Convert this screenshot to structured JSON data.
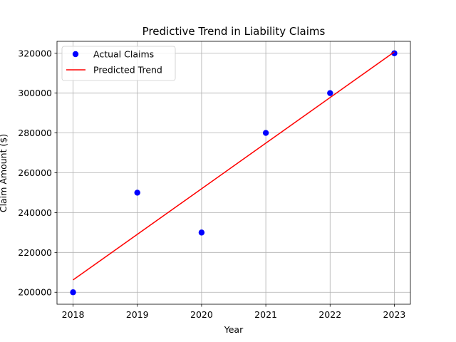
{
  "chart_data": {
    "type": "scatter",
    "title": "Predictive Trend in Liability Claims",
    "xlabel": "Year",
    "ylabel": "Claim Amount ($)",
    "x": [
      2018,
      2019,
      2020,
      2021,
      2022,
      2023
    ],
    "xlim": [
      2017.75,
      2023.25
    ],
    "ylim": [
      194000,
      326000
    ],
    "x_ticks": [
      2018,
      2019,
      2020,
      2021,
      2022,
      2023
    ],
    "y_ticks": [
      200000,
      220000,
      240000,
      260000,
      280000,
      300000,
      320000
    ],
    "grid": true,
    "legend_position": "top-left",
    "series": [
      {
        "name": "Actual Claims",
        "kind": "scatter",
        "color": "#0000ff",
        "x": [
          2018,
          2019,
          2020,
          2021,
          2022,
          2023
        ],
        "values": [
          200000,
          250000,
          230000,
          280000,
          300000,
          320000
        ]
      },
      {
        "name": "Predicted Trend",
        "kind": "line",
        "color": "#ff0000",
        "x": [
          2018,
          2023
        ],
        "values": [
          206191,
          320667
        ]
      }
    ]
  }
}
